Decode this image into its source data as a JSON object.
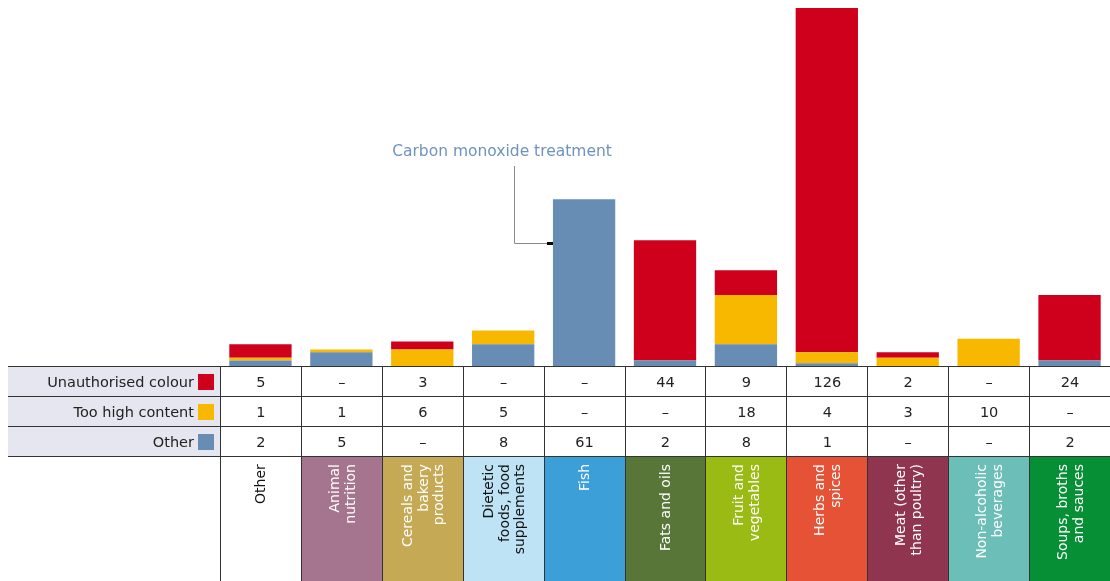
{
  "chart_data": {
    "type": "bar",
    "stacked": true,
    "categories": [
      "Other",
      "Animal nutrition",
      "Cereals and bakery products",
      "Dietetic foods, food supplements",
      "Fish",
      "Fats and oils",
      "Fruit and vegetables",
      "Herbs and spices",
      "Meat (other than poultry)",
      "Non-alcoholic beverages",
      "Soups, broths and sauces"
    ],
    "series": [
      {
        "name": "Other",
        "color": "#678db4",
        "values": [
          2,
          5,
          null,
          8,
          61,
          2,
          8,
          1,
          null,
          null,
          2
        ],
        "value_labels": [
          "2",
          "5",
          "–",
          "8",
          "61",
          "2",
          "8",
          "1",
          "–",
          "–",
          "2"
        ]
      },
      {
        "name": "Too high content",
        "color": "#f8b800",
        "values": [
          1,
          1,
          6,
          5,
          null,
          null,
          18,
          4,
          3,
          10,
          null
        ],
        "value_labels": [
          "1",
          "1",
          "6",
          "5",
          "–",
          "–",
          "18",
          "4",
          "3",
          "10",
          "–"
        ]
      },
      {
        "name": "Unauthorised colour",
        "color": "#cf001b",
        "values": [
          5,
          null,
          3,
          null,
          null,
          44,
          9,
          126,
          2,
          null,
          24
        ],
        "value_labels": [
          "5",
          "–",
          "3",
          "–",
          "–",
          "44",
          "9",
          "126",
          "2",
          "–",
          "24"
        ]
      }
    ],
    "annotations": [
      "Carbon monoxide treatment"
    ],
    "legend": "bottom left",
    "tick_labels": "x"
  }
}
